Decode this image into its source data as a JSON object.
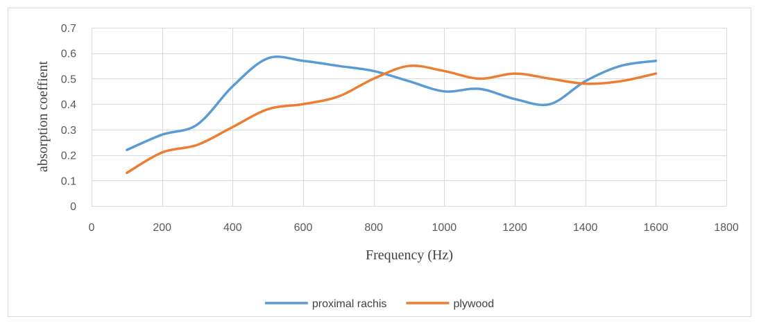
{
  "chart_data": {
    "type": "line",
    "title": "",
    "xlabel": "Frequency (Hz)",
    "ylabel": "absorption coeffient",
    "xlim": [
      0,
      1800
    ],
    "ylim": [
      0,
      0.7
    ],
    "xticks": [
      0,
      200,
      400,
      600,
      800,
      1000,
      1200,
      1400,
      1600,
      1800
    ],
    "yticks": [
      0,
      0.1,
      0.2,
      0.3,
      0.4,
      0.5,
      0.6,
      0.7
    ],
    "grid": true,
    "smooth": true,
    "legend_position": "bottom",
    "series": [
      {
        "name": "proximal rachis",
        "color": "#5b9bd5",
        "x": [
          100,
          200,
          300,
          400,
          500,
          600,
          700,
          800,
          900,
          1000,
          1100,
          1200,
          1300,
          1400,
          1500,
          1600
        ],
        "y": [
          0.22,
          0.28,
          0.32,
          0.47,
          0.58,
          0.57,
          0.55,
          0.53,
          0.49,
          0.45,
          0.46,
          0.42,
          0.4,
          0.49,
          0.55,
          0.57
        ]
      },
      {
        "name": "plywood",
        "color": "#ed7d31",
        "x": [
          100,
          200,
          300,
          400,
          500,
          600,
          700,
          800,
          900,
          1000,
          1100,
          1200,
          1300,
          1400,
          1500,
          1600
        ],
        "y": [
          0.13,
          0.21,
          0.24,
          0.31,
          0.38,
          0.4,
          0.43,
          0.5,
          0.55,
          0.53,
          0.5,
          0.52,
          0.5,
          0.48,
          0.49,
          0.52
        ]
      }
    ]
  },
  "colors": {
    "gridline": "#d9d9d9",
    "frame": "#d9d9d9",
    "background": "#ffffff"
  }
}
